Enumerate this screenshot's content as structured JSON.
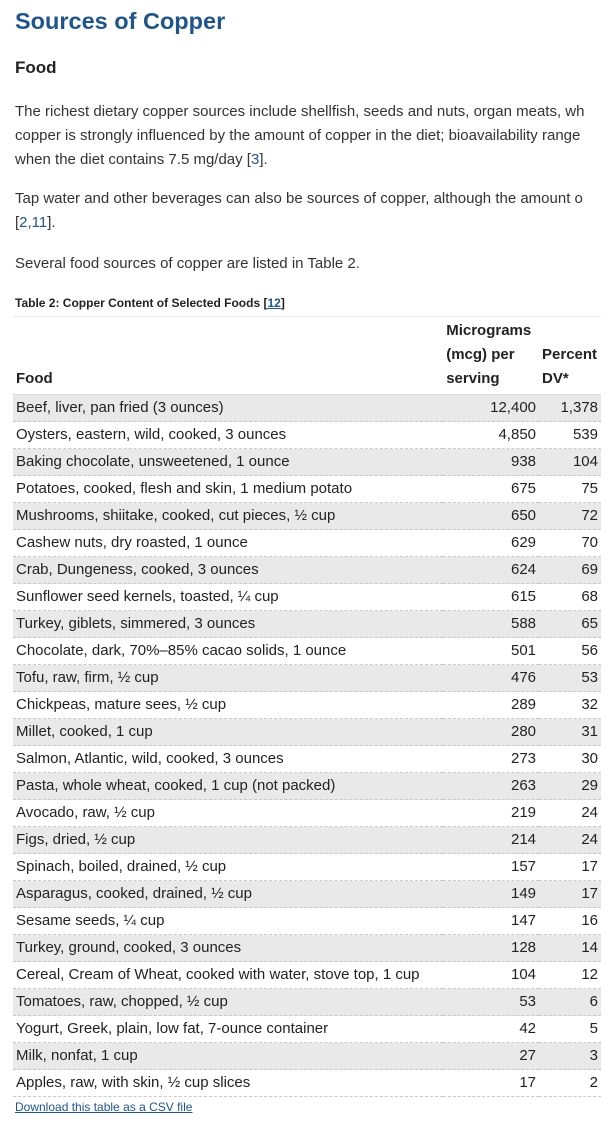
{
  "heading": "Sources of Copper",
  "subheading": "Food",
  "para1": {
    "line1": "The richest dietary copper sources include shellfish, seeds and nuts, organ meats, wh",
    "line2": "copper is strongly influenced by the amount of copper in the diet; bioavailability range",
    "line3_pre": "when the diet contains 7.5 mg/day [",
    "line3_ref": "3",
    "line3_post": "]."
  },
  "para2": {
    "line1": "Tap water and other beverages can also be sources of copper, although the amount o",
    "line2_pre": "[",
    "line2_ref": "2,11",
    "line2_post": "]."
  },
  "para3": "Several food sources of copper are listed in Table 2.",
  "table": {
    "caption_pre": "Table 2: Copper Content of Selected Foods [",
    "caption_ref": "12",
    "caption_post": "]",
    "headers": {
      "food": "Food",
      "mcg_line1": "Micrograms",
      "mcg_line2": "(mcg) per",
      "mcg_line3": "serving",
      "dv_line1": "Percent",
      "dv_line2": "DV*"
    },
    "rows": [
      {
        "food": "Beef, liver, pan fried (3 ounces)",
        "mcg": "12,400",
        "dv": "1,378"
      },
      {
        "food": "Oysters, eastern, wild, cooked, 3 ounces",
        "mcg": "4,850",
        "dv": "539"
      },
      {
        "food": "Baking chocolate, unsweetened, 1 ounce",
        "mcg": "938",
        "dv": "104"
      },
      {
        "food": "Potatoes, cooked, flesh and skin, 1 medium potato",
        "mcg": "675",
        "dv": "75"
      },
      {
        "food": "Mushrooms, shiitake, cooked, cut pieces, ½ cup",
        "mcg": "650",
        "dv": "72"
      },
      {
        "food": "Cashew nuts, dry roasted, 1 ounce",
        "mcg": "629",
        "dv": "70"
      },
      {
        "food": "Crab, Dungeness, cooked, 3 ounces",
        "mcg": "624",
        "dv": "69"
      },
      {
        "food": "Sunflower seed kernels, toasted, ¼ cup",
        "mcg": "615",
        "dv": "68"
      },
      {
        "food": "Turkey, giblets, simmered, 3 ounces",
        "mcg": "588",
        "dv": "65"
      },
      {
        "food": "Chocolate, dark, 70%–85% cacao solids, 1 ounce",
        "mcg": "501",
        "dv": "56"
      },
      {
        "food": "Tofu, raw, firm, ½ cup",
        "mcg": "476",
        "dv": "53"
      },
      {
        "food": "Chickpeas, mature sees, ½ cup",
        "mcg": "289",
        "dv": "32"
      },
      {
        "food": "Millet, cooked, 1 cup",
        "mcg": "280",
        "dv": "31"
      },
      {
        "food": "Salmon, Atlantic, wild, cooked, 3 ounces",
        "mcg": "273",
        "dv": "30"
      },
      {
        "food": "Pasta, whole wheat, cooked, 1 cup (not packed)",
        "mcg": "263",
        "dv": "29"
      },
      {
        "food": "Avocado, raw, ½ cup",
        "mcg": "219",
        "dv": "24"
      },
      {
        "food": "Figs, dried, ½ cup",
        "mcg": "214",
        "dv": "24"
      },
      {
        "food": "Spinach, boiled, drained, ½ cup",
        "mcg": "157",
        "dv": "17"
      },
      {
        "food": "Asparagus, cooked, drained, ½ cup",
        "mcg": "149",
        "dv": "17"
      },
      {
        "food": "Sesame seeds, ¼ cup",
        "mcg": "147",
        "dv": "16"
      },
      {
        "food": "Turkey, ground, cooked, 3 ounces",
        "mcg": "128",
        "dv": "14"
      },
      {
        "food": "Cereal, Cream of Wheat, cooked with water, stove top, 1 cup",
        "mcg": "104",
        "dv": "12"
      },
      {
        "food": "Tomatoes, raw, chopped, ½ cup",
        "mcg": "53",
        "dv": "6"
      },
      {
        "food": "Yogurt, Greek, plain, low fat, 7-ounce container",
        "mcg": "42",
        "dv": "5"
      },
      {
        "food": "Milk, nonfat, 1 cup",
        "mcg": "27",
        "dv": "3"
      },
      {
        "food": "Apples, raw, with skin, ½ cup slices",
        "mcg": "17",
        "dv": "2"
      }
    ]
  },
  "download_link": "Download this table as a CSV file"
}
